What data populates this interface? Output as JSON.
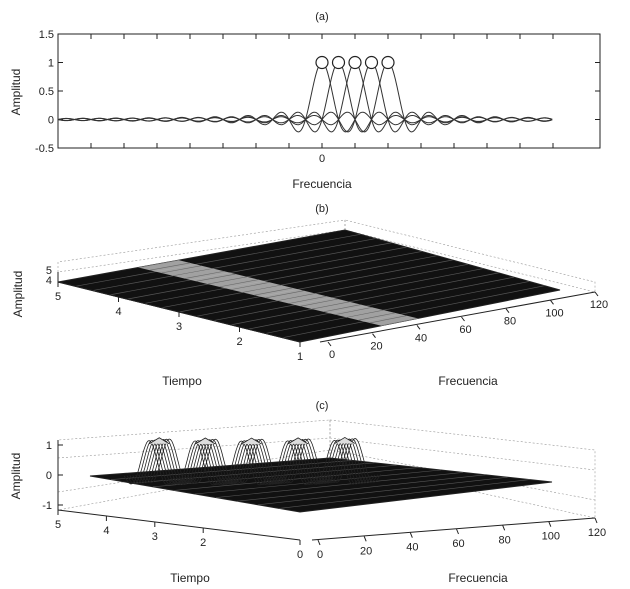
{
  "chart_data": [
    {
      "type": "line",
      "panel": "(a)",
      "title": "(a)",
      "xlabel": "Frecuencia",
      "ylabel": "Amplitud",
      "xticks": [
        "0"
      ],
      "yticks": [
        "1.5",
        "1",
        "0.5",
        "0",
        "-0.5"
      ],
      "ylim": [
        -0.5,
        1.5
      ],
      "xlim": [
        -16,
        14
      ],
      "grid": false,
      "series_generator": "sinc",
      "centers": [
        0,
        1,
        2,
        3,
        4
      ],
      "peak_values": [
        1,
        1,
        1,
        1,
        1
      ],
      "sample_spacing": 1
    },
    {
      "type": "surface",
      "panel": "(b)",
      "title": "(b)",
      "xlabel": "Frecuencia",
      "ylabel": "Tiempo",
      "zlabel": "Amplitud",
      "xticks": [
        "0",
        "20",
        "40",
        "60",
        "80",
        "100",
        "120"
      ],
      "yticks": [
        "1",
        "2",
        "3",
        "4",
        "5"
      ],
      "zticks": [
        "5",
        "4"
      ],
      "xlim": [
        0,
        120
      ],
      "ylim": [
        1,
        5
      ],
      "band_frequency_range": [
        40,
        60
      ]
    },
    {
      "type": "surface",
      "panel": "(c)",
      "title": "(c)",
      "xlabel": "Frecuencia",
      "ylabel": "Tiempo",
      "zlabel": "Amplitud",
      "xticks": [
        "0",
        "20",
        "40",
        "60",
        "80",
        "100",
        "120"
      ],
      "yticks": [
        "0",
        "2",
        "3",
        "4",
        "5"
      ],
      "zticks": [
        "1",
        "0",
        "-1"
      ],
      "xlim": [
        0,
        120
      ],
      "ylim": [
        0,
        5
      ],
      "zlim": [
        -1,
        1
      ],
      "peak_frequencies": [
        40,
        50,
        60,
        70,
        80
      ]
    }
  ]
}
